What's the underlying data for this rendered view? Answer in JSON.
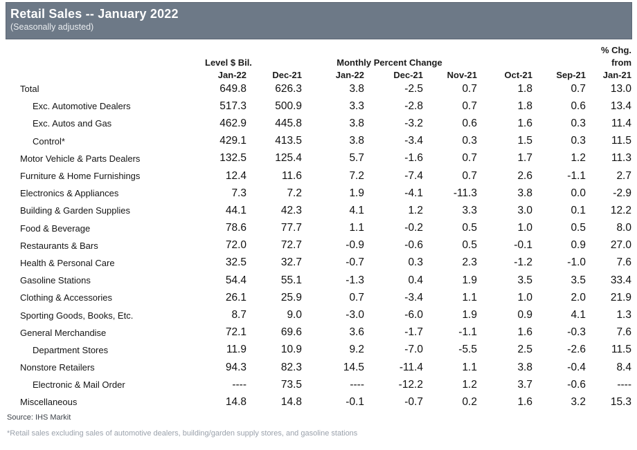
{
  "banner": {
    "title": "Retail Sales -- January 2022",
    "subtitle": "(Seasonally adjusted)"
  },
  "colors": {
    "banner_bg": "#6d7987",
    "banner_border": "#5d6774",
    "text": "#141414",
    "footnote_gray": "#9aa1ab"
  },
  "chart_data": {
    "type": "table",
    "title": "Retail Sales -- January 2022",
    "subtitle": "(Seasonally adjusted)",
    "group_headers": {
      "level": "Level $ Bil.",
      "monthly": "Monthly Percent Change",
      "pct_chg_line1": "% Chg.",
      "pct_chg_line2": "from"
    },
    "columns": [
      "Jan-22",
      "Dec-21",
      "Jan-22",
      "Dec-21",
      "Nov-21",
      "Oct-21",
      "Sep-21",
      "Jan-21"
    ],
    "rows": [
      {
        "label": "Total",
        "indent": 0,
        "values": [
          "649.8",
          "626.3",
          "3.8",
          "-2.5",
          "0.7",
          "1.8",
          "0.7",
          "13.0"
        ]
      },
      {
        "label": "Exc. Automotive Dealers",
        "indent": 1,
        "values": [
          "517.3",
          "500.9",
          "3.3",
          "-2.8",
          "0.7",
          "1.8",
          "0.6",
          "13.4"
        ]
      },
      {
        "label": "Exc. Autos and Gas",
        "indent": 1,
        "values": [
          "462.9",
          "445.8",
          "3.8",
          "-3.2",
          "0.6",
          "1.6",
          "0.3",
          "11.4"
        ]
      },
      {
        "label": "Control*",
        "indent": 1,
        "values": [
          "429.1",
          "413.5",
          "3.8",
          "-3.4",
          "0.3",
          "1.5",
          "0.3",
          "11.5"
        ]
      },
      {
        "label": "Motor Vehicle & Parts Dealers",
        "indent": 0,
        "values": [
          "132.5",
          "125.4",
          "5.7",
          "-1.6",
          "0.7",
          "1.7",
          "1.2",
          "11.3"
        ]
      },
      {
        "label": "Furniture & Home Furnishings",
        "indent": 0,
        "values": [
          "12.4",
          "11.6",
          "7.2",
          "-7.4",
          "0.7",
          "2.6",
          "-1.1",
          "2.7"
        ]
      },
      {
        "label": "Electronics & Appliances",
        "indent": 0,
        "values": [
          "7.3",
          "7.2",
          "1.9",
          "-4.1",
          "-11.3",
          "3.8",
          "0.0",
          "-2.9"
        ]
      },
      {
        "label": "Building & Garden Supplies",
        "indent": 0,
        "values": [
          "44.1",
          "42.3",
          "4.1",
          "1.2",
          "3.3",
          "3.0",
          "0.1",
          "12.2"
        ]
      },
      {
        "label": "Food & Beverage",
        "indent": 0,
        "values": [
          "78.6",
          "77.7",
          "1.1",
          "-0.2",
          "0.5",
          "1.0",
          "0.5",
          "8.0"
        ]
      },
      {
        "label": "Restaurants & Bars",
        "indent": 0,
        "values": [
          "72.0",
          "72.7",
          "-0.9",
          "-0.6",
          "0.5",
          "-0.1",
          "0.9",
          "27.0"
        ]
      },
      {
        "label": "Health & Personal Care",
        "indent": 0,
        "values": [
          "32.5",
          "32.7",
          "-0.7",
          "0.3",
          "2.3",
          "-1.2",
          "-1.0",
          "7.6"
        ]
      },
      {
        "label": "Gasoline Stations",
        "indent": 0,
        "values": [
          "54.4",
          "55.1",
          "-1.3",
          "0.4",
          "1.9",
          "3.5",
          "3.5",
          "33.4"
        ]
      },
      {
        "label": "Clothing & Accessories",
        "indent": 0,
        "values": [
          "26.1",
          "25.9",
          "0.7",
          "-3.4",
          "1.1",
          "1.0",
          "2.0",
          "21.9"
        ]
      },
      {
        "label": "Sporting Goods, Books, Etc.",
        "indent": 0,
        "values": [
          "8.7",
          "9.0",
          "-3.0",
          "-6.0",
          "1.9",
          "0.9",
          "4.1",
          "1.3"
        ]
      },
      {
        "label": "General Merchandise",
        "indent": 0,
        "values": [
          "72.1",
          "69.6",
          "3.6",
          "-1.7",
          "-1.1",
          "1.6",
          "-0.3",
          "7.6"
        ]
      },
      {
        "label": "Department Stores",
        "indent": 1,
        "values": [
          "11.9",
          "10.9",
          "9.2",
          "-7.0",
          "-5.5",
          "2.5",
          "-2.6",
          "11.5"
        ]
      },
      {
        "label": "Nonstore Retailers",
        "indent": 0,
        "values": [
          "94.3",
          "82.3",
          "14.5",
          "-11.4",
          "1.1",
          "3.8",
          "-0.4",
          "8.4"
        ]
      },
      {
        "label": "Electronic & Mail Order",
        "indent": 1,
        "values": [
          "----",
          "73.5",
          "----",
          "-12.2",
          "1.2",
          "3.7",
          "-0.6",
          "----"
        ]
      },
      {
        "label": "Miscellaneous",
        "indent": 0,
        "values": [
          "14.8",
          "14.8",
          "-0.1",
          "-0.7",
          "0.2",
          "1.6",
          "3.2",
          "15.3"
        ]
      }
    ]
  },
  "footer": {
    "source": "Source: IHS Markit",
    "footnote": "*Retail sales excluding sales of automotive dealers, building/garden supply stores, and gasoline stations"
  }
}
